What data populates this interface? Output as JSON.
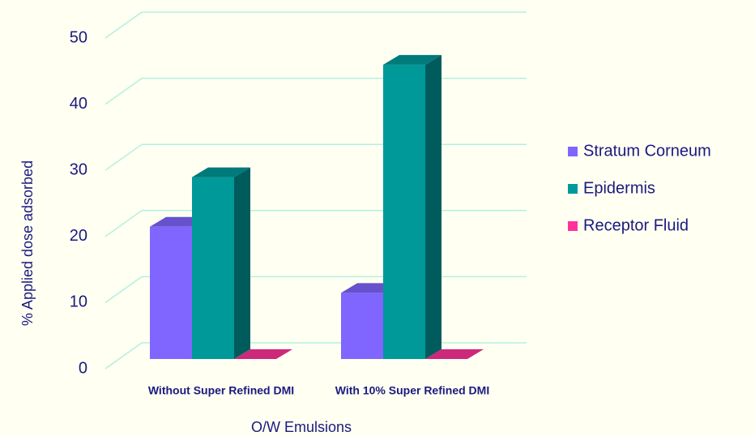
{
  "chart_data": {
    "type": "bar3d",
    "categories": [
      "Without  Super Refined DMI",
      "With 10% Super Refined DMI"
    ],
    "series": [
      {
        "name": "Stratum Corneum",
        "color": "#8066ff",
        "values": [
          20,
          10
        ]
      },
      {
        "name": "Epidermis",
        "color": "#009999",
        "values": [
          27.5,
          44.5
        ]
      },
      {
        "name": "Receptor Fluid",
        "color": "#ff3399",
        "values": [
          0,
          0
        ]
      }
    ],
    "x_label": "O/W Emulsions",
    "y_label": "% Applied dose adsorbed",
    "ylim": [
      0,
      50
    ],
    "yticks": [
      0,
      10,
      20,
      30,
      40,
      50
    ],
    "grid": true,
    "legend": "right"
  }
}
